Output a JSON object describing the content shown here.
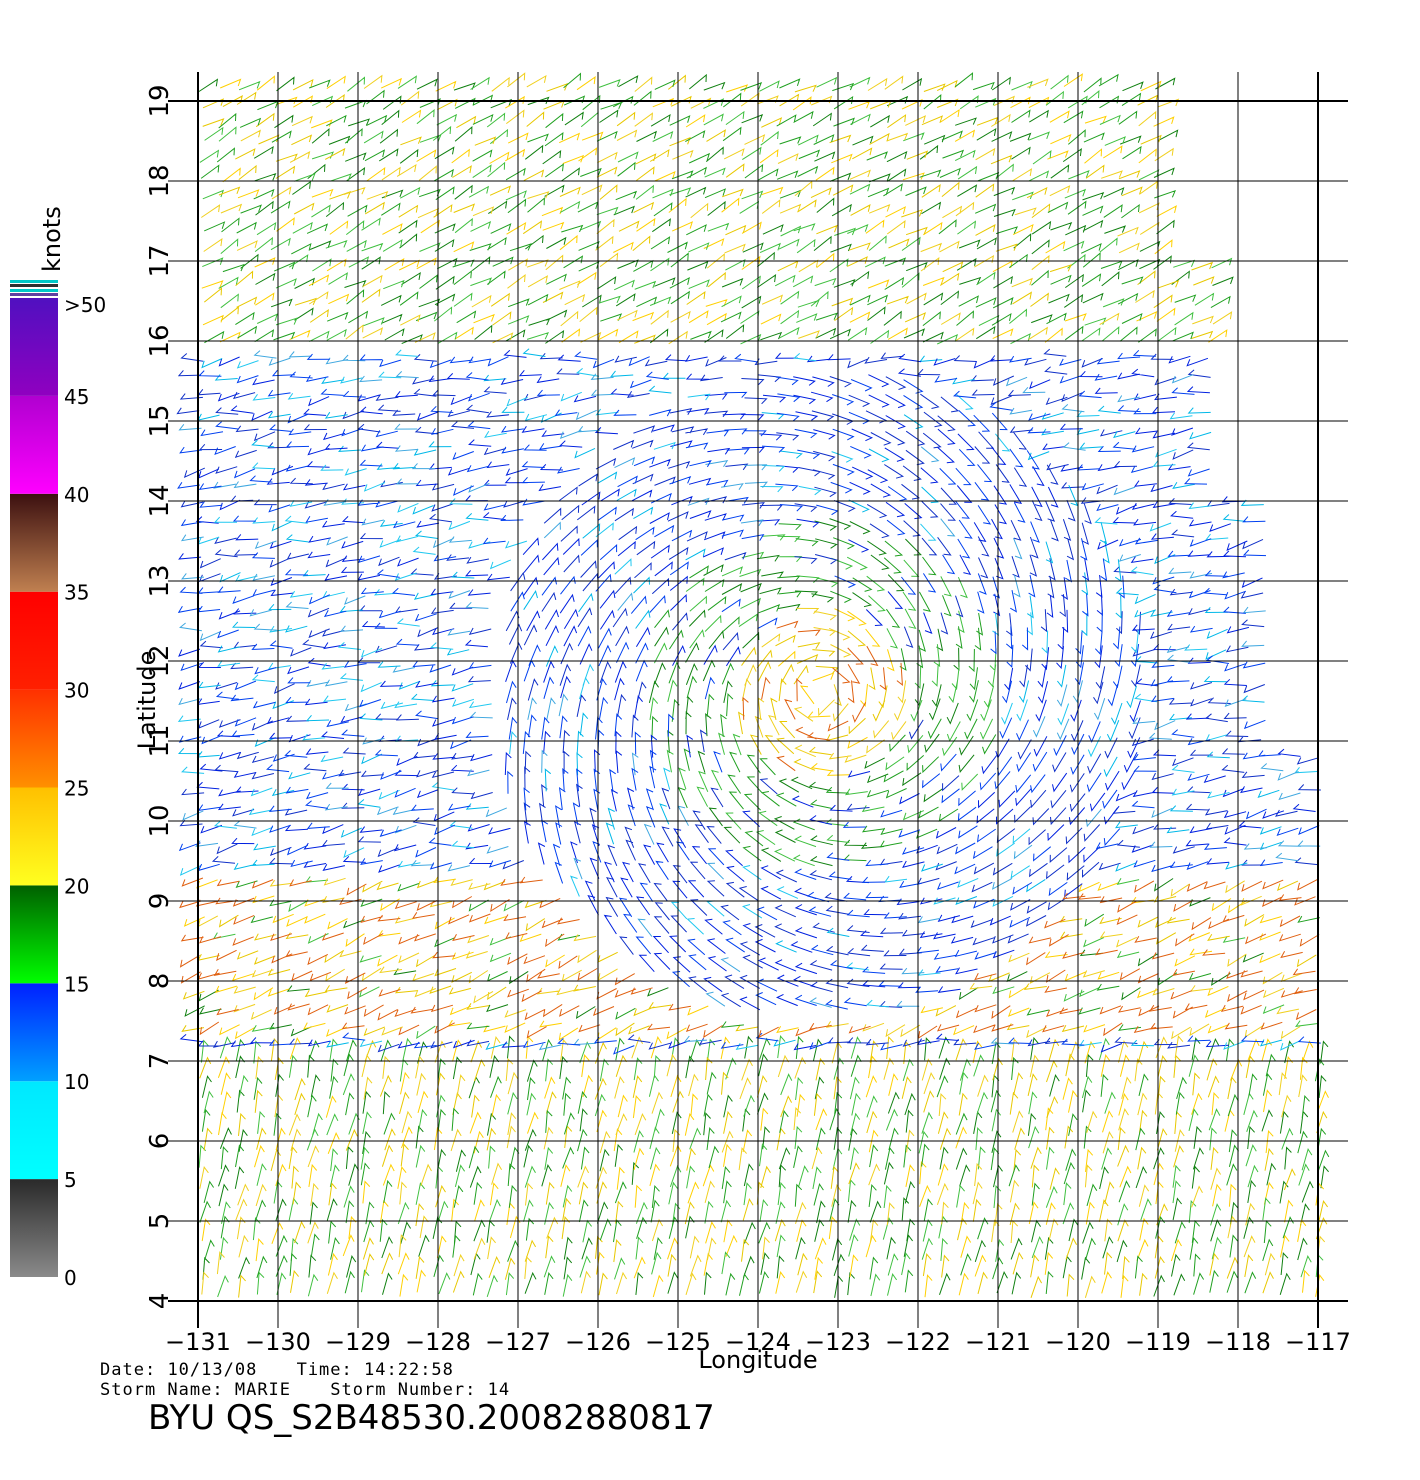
{
  "map": {
    "lon_range": [
      -131,
      -117
    ],
    "lat_range": [
      4,
      19
    ],
    "lon_ticks": [
      -131,
      -130,
      -129,
      -128,
      -127,
      -126,
      -125,
      -124,
      -123,
      -122,
      -121,
      -120,
      -119,
      -118,
      -117
    ],
    "lat_ticks": [
      4,
      5,
      6,
      7,
      8,
      9,
      10,
      11,
      12,
      13,
      14,
      15,
      16,
      17,
      18,
      19
    ],
    "lon_tick_labels": [
      "−131",
      "−130",
      "−129",
      "−128",
      "−127",
      "−126",
      "−125",
      "−124",
      "−123",
      "−122",
      "−121",
      "−120",
      "−119",
      "−118",
      "−117"
    ],
    "lat_tick_labels": [
      "4",
      "5",
      "6",
      "7",
      "8",
      "9",
      "10",
      "11",
      "12",
      "13",
      "14",
      "15",
      "16",
      "17",
      "18",
      "19"
    ],
    "xlabel": "Longitude",
    "ylabel": "Latitude",
    "storm_center": {
      "lon": -123.2,
      "lat": 11.6
    },
    "wind_field": "QuikSCAT wind barbs colored by speed"
  },
  "colorbar": {
    "title": "knots",
    "tick_labels": [
      "0",
      "5",
      "10",
      "15",
      "20",
      "25",
      "30",
      "35",
      "40",
      "45",
      ">50"
    ],
    "bands": [
      {
        "from": 0,
        "to": 5,
        "top": "#2a2a2a",
        "bottom": "#8a8a8a"
      },
      {
        "from": 5,
        "to": 10,
        "top": "#00e8ff",
        "bottom": "#00ffff"
      },
      {
        "from": 10,
        "to": 15,
        "top": "#0020ff",
        "bottom": "#00a0ff"
      },
      {
        "from": 15,
        "to": 20,
        "top": "#006000",
        "bottom": "#00ff00"
      },
      {
        "from": 20,
        "to": 25,
        "top": "#ffc000",
        "bottom": "#ffff20"
      },
      {
        "from": 25,
        "to": 30,
        "top": "#ff3000",
        "bottom": "#ff9000"
      },
      {
        "from": 30,
        "to": 35,
        "top": "#ff0000",
        "bottom": "#ff2000"
      },
      {
        "from": 35,
        "to": 40,
        "top": "#3c1010",
        "bottom": "#c08050"
      },
      {
        "from": 40,
        "to": 45,
        "top": "#b000d0",
        "bottom": "#ff00ff"
      },
      {
        "from": 45,
        "to": 50,
        "top": "#5010c0",
        "bottom": "#9000c0"
      }
    ]
  },
  "info": {
    "date_label": "Date:",
    "date": "10/13/08",
    "time_label": "Time:",
    "time": "14:22:58",
    "storm_name_label": "Storm Name:",
    "storm_name": "MARIE",
    "storm_number_label": "Storm Number:",
    "storm_number": "14"
  },
  "file_id": "BYU  QS_S2B48530.20082880817"
}
